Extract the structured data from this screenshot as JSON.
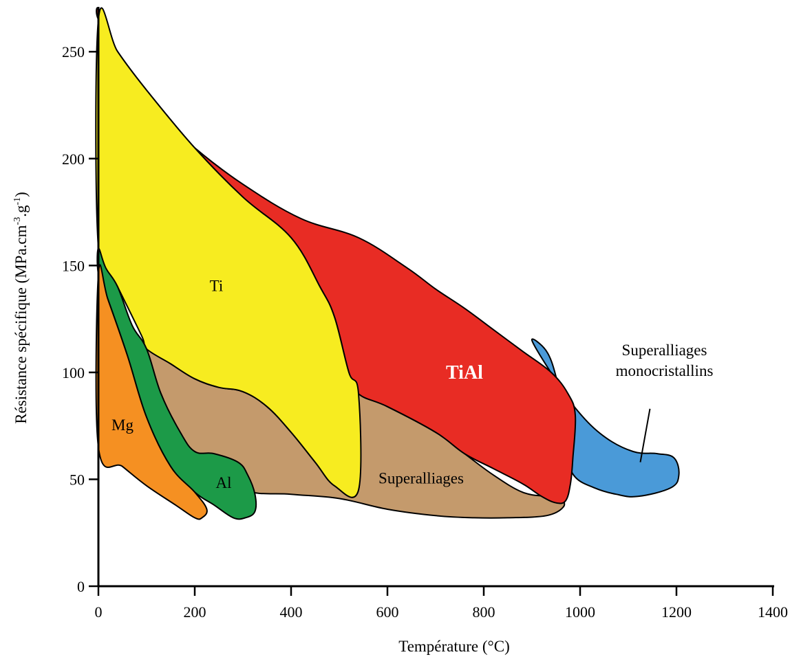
{
  "chart_data": {
    "type": "area",
    "xlabel": "Température (°C)",
    "ylabel": "Résistance spécifique (MPa.cm",
    "ylabel_sup1": "-3",
    "ylabel_mid": ".g",
    "ylabel_sup2": "-1",
    "ylabel_end": ")",
    "xlim": [
      0,
      1400
    ],
    "ylim": [
      0,
      270
    ],
    "x_ticks": [
      0,
      200,
      400,
      600,
      800,
      1000,
      1200,
      1400
    ],
    "y_ticks": [
      0,
      50,
      100,
      150,
      200,
      250
    ],
    "x_tick_labels": [
      "0",
      "200",
      "400",
      "600",
      "800",
      "1000",
      "1200",
      "1400"
    ],
    "y_tick_labels": [
      "0",
      "50",
      "100",
      "150",
      "200",
      "250"
    ],
    "grid": false,
    "regions": [
      {
        "name": "Superalliages monocristallins",
        "label": "Superalliages\nmonocristallins",
        "label_lines": [
          "Superalliages",
          "monocristallins"
        ],
        "color": "#4a9ad8",
        "label_pos": [
          1175,
          108
        ],
        "leader": [
          [
            1145,
            83
          ],
          [
            1125,
            58
          ]
        ],
        "points": [
          [
            900,
            115
          ],
          [
            945,
            98
          ],
          [
            995,
            82
          ],
          [
            1050,
            70
          ],
          [
            1110,
            63
          ],
          [
            1160,
            62
          ],
          [
            1195,
            60
          ],
          [
            1205,
            52
          ],
          [
            1188,
            46
          ],
          [
            1120,
            42
          ],
          [
            1075,
            43
          ],
          [
            1030,
            46
          ],
          [
            990,
            51
          ],
          [
            975,
            60
          ],
          [
            965,
            80
          ],
          [
            950,
            98
          ],
          [
            930,
            110
          ]
        ]
      },
      {
        "name": "Superalliages",
        "label": "Superalliages",
        "color": "#c49a6c",
        "label_pos": [
          670,
          48
        ],
        "points": [
          [
            100,
            111
          ],
          [
            150,
            104
          ],
          [
            200,
            97
          ],
          [
            250,
            93
          ],
          [
            300,
            91
          ],
          [
            350,
            84
          ],
          [
            400,
            72
          ],
          [
            450,
            58
          ],
          [
            490,
            47
          ],
          [
            540,
            45
          ],
          [
            540,
            90
          ],
          [
            600,
            84
          ],
          [
            700,
            72
          ],
          [
            760,
            62
          ],
          [
            820,
            52
          ],
          [
            880,
            44
          ],
          [
            930,
            42
          ],
          [
            960,
            41
          ],
          [
            965,
            37
          ],
          [
            930,
            33
          ],
          [
            850,
            32
          ],
          [
            780,
            32
          ],
          [
            700,
            33
          ],
          [
            600,
            36
          ],
          [
            500,
            41
          ],
          [
            400,
            43
          ],
          [
            300,
            45
          ],
          [
            200,
            58
          ],
          [
            130,
            90
          ]
        ]
      },
      {
        "name": "TiAl",
        "label": "TiAl",
        "color": "#e82c24",
        "label_pos": [
          760,
          97
        ],
        "points": [
          [
            0,
            270
          ],
          [
            20,
            255
          ],
          [
            60,
            240
          ],
          [
            120,
            222
          ],
          [
            200,
            205
          ],
          [
            300,
            188
          ],
          [
            420,
            172
          ],
          [
            540,
            163
          ],
          [
            640,
            149
          ],
          [
            700,
            139
          ],
          [
            760,
            130
          ],
          [
            820,
            120
          ],
          [
            880,
            110
          ],
          [
            940,
            100
          ],
          [
            975,
            90
          ],
          [
            990,
            80
          ],
          [
            985,
            60
          ],
          [
            980,
            48
          ],
          [
            970,
            40
          ],
          [
            950,
            39
          ],
          [
            920,
            42
          ],
          [
            880,
            48
          ],
          [
            820,
            55
          ],
          [
            760,
            62
          ],
          [
            700,
            72
          ],
          [
            600,
            84
          ],
          [
            540,
            90
          ],
          [
            520,
            100
          ],
          [
            490,
            126
          ],
          [
            460,
            140
          ],
          [
            400,
            163
          ],
          [
            300,
            182
          ],
          [
            200,
            205
          ],
          [
            100,
            232
          ],
          [
            40,
            250
          ],
          [
            0,
            265
          ]
        ]
      },
      {
        "name": "Ti",
        "label": "Ti",
        "color": "#f7ec20",
        "label_pos": [
          245,
          138
        ],
        "points": [
          [
            0,
            265
          ],
          [
            40,
            250
          ],
          [
            100,
            232
          ],
          [
            200,
            205
          ],
          [
            300,
            182
          ],
          [
            400,
            163
          ],
          [
            460,
            140
          ],
          [
            490,
            126
          ],
          [
            520,
            100
          ],
          [
            540,
            90
          ],
          [
            540,
            45
          ],
          [
            490,
            47
          ],
          [
            450,
            58
          ],
          [
            400,
            72
          ],
          [
            350,
            84
          ],
          [
            300,
            91
          ],
          [
            250,
            93
          ],
          [
            200,
            97
          ],
          [
            150,
            104
          ],
          [
            100,
            111
          ],
          [
            90,
            117
          ],
          [
            40,
            140
          ],
          [
            0,
            158
          ]
        ]
      },
      {
        "name": "Al",
        "label": "Al",
        "color": "#1c9a48",
        "label_pos": [
          260,
          46
        ],
        "points": [
          [
            0,
            158
          ],
          [
            15,
            149
          ],
          [
            40,
            140
          ],
          [
            70,
            122
          ],
          [
            100,
            111
          ],
          [
            130,
            90
          ],
          [
            170,
            72
          ],
          [
            200,
            63
          ],
          [
            240,
            62
          ],
          [
            290,
            58
          ],
          [
            310,
            52
          ],
          [
            325,
            43
          ],
          [
            325,
            35
          ],
          [
            305,
            32
          ],
          [
            280,
            32
          ],
          [
            240,
            38
          ],
          [
            200,
            44
          ],
          [
            150,
            56
          ],
          [
            100,
            79
          ],
          [
            60,
            108
          ],
          [
            20,
            134
          ],
          [
            0,
            146
          ]
        ]
      },
      {
        "name": "Mg",
        "label": "Mg",
        "color": "#f59022",
        "label_pos": [
          50,
          73
        ],
        "points": [
          [
            0,
            146
          ],
          [
            20,
            134
          ],
          [
            60,
            108
          ],
          [
            100,
            79
          ],
          [
            150,
            56
          ],
          [
            200,
            44
          ],
          [
            225,
            36
          ],
          [
            215,
            32
          ],
          [
            200,
            32
          ],
          [
            160,
            38
          ],
          [
            100,
            47
          ],
          [
            50,
            56
          ],
          [
            0,
            65
          ]
        ]
      }
    ]
  }
}
